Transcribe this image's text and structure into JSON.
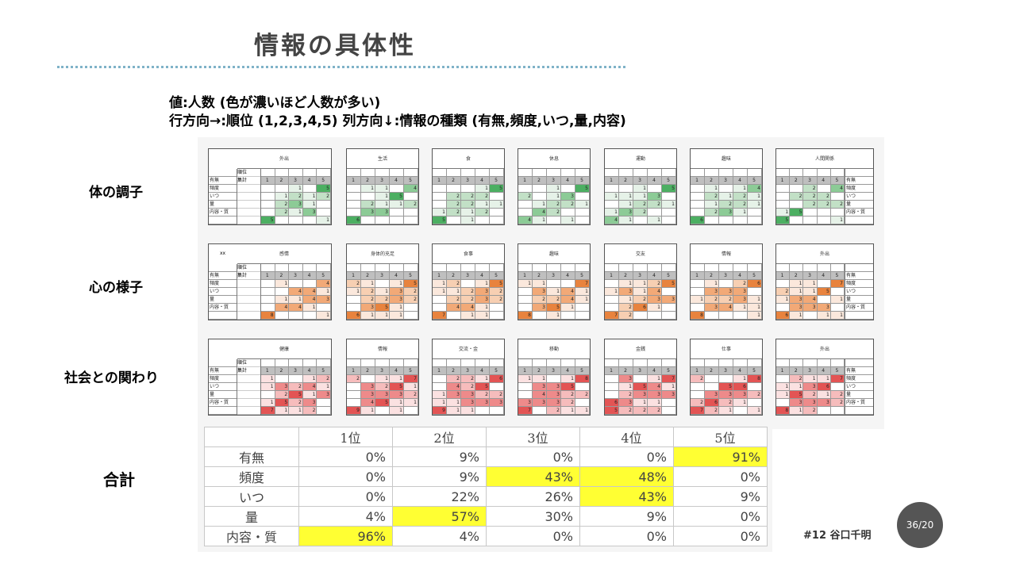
{
  "title": "情報の具体性",
  "subtitle_line1": "値:人数 (色が濃いほど人数が多い)",
  "subtitle_line2": "行方向→:順位 (1,2,3,4,5) 列方向↓:情報の種類 (有無,頻度,いつ,量,内容)",
  "row_labels": [
    "体の調子",
    "心の様子",
    "社会との関わり"
  ],
  "summary_label": "合計",
  "summary_table": {
    "headers": [
      "",
      "1位",
      "2位",
      "3位",
      "4位",
      "5位"
    ],
    "rows": [
      {
        "label": "有無",
        "values": [
          "0%",
          "9%",
          "0%",
          "0%",
          "91%"
        ],
        "highlight": [
          false,
          false,
          false,
          false,
          true
        ]
      },
      {
        "label": "頻度",
        "values": [
          "0%",
          "9%",
          "43%",
          "48%",
          "0%"
        ],
        "highlight": [
          false,
          false,
          true,
          true,
          false
        ]
      },
      {
        "label": "いつ",
        "values": [
          "0%",
          "22%",
          "26%",
          "43%",
          "9%"
        ],
        "highlight": [
          false,
          false,
          false,
          true,
          false
        ]
      },
      {
        "label": "量",
        "values": [
          "4%",
          "57%",
          "30%",
          "9%",
          "0%"
        ],
        "highlight": [
          false,
          true,
          false,
          false,
          false
        ]
      },
      {
        "label": "内容・質",
        "values": [
          "96%",
          "4%",
          "0%",
          "0%",
          "0%"
        ],
        "highlight": [
          true,
          false,
          false,
          false,
          false
        ]
      }
    ]
  },
  "mini_tables": {
    "rank_header": [
      "1",
      "2",
      "3",
      "4",
      "5"
    ],
    "row_names": [
      "有無",
      "頻度",
      "いつ",
      "量",
      "内容・質"
    ],
    "left_labels": {
      "rank": "順位",
      "sum": "集計",
      "xx": "xx"
    },
    "colors": {
      "green": [
        "#e6f2e8",
        "#c2e0c6",
        "#8ccb96",
        "#4caf62"
      ],
      "orange": [
        "#fbe8dc",
        "#f7cfb2",
        "#f2a977",
        "#e8833e"
      ],
      "red": [
        "#fbe1e1",
        "#f6bcbc",
        "#ee8a8a",
        "#e35454"
      ]
    },
    "groups": [
      {
        "color": "green",
        "titles": [
          "外出",
          "生活",
          "食",
          "休息",
          "運動",
          "趣味",
          "人間関係"
        ],
        "data": [
          [
            [
              0,
              0,
              1,
              0,
              5
            ],
            [
              0,
              1,
              2,
              1,
              2
            ],
            [
              0,
              2,
              3,
              1,
              0
            ],
            [
              0,
              2,
              1,
              3,
              0
            ],
            [
              5,
              0,
              0,
              0,
              1
            ]
          ],
          [
            [
              0,
              1,
              1,
              0,
              4
            ],
            [
              0,
              0,
              1,
              5,
              0
            ],
            [
              0,
              2,
              1,
              1,
              2
            ],
            [
              0,
              3,
              3,
              0,
              0
            ],
            [
              6,
              0,
              0,
              0,
              0
            ]
          ],
          [
            [
              0,
              0,
              0,
              1,
              5
            ],
            [
              0,
              2,
              2,
              2,
              0
            ],
            [
              0,
              2,
              2,
              1,
              1
            ],
            [
              1,
              2,
              1,
              2,
              0
            ],
            [
              5,
              0,
              1,
              0,
              0
            ]
          ],
          [
            [
              0,
              0,
              1,
              0,
              5
            ],
            [
              2,
              0,
              1,
              3,
              0
            ],
            [
              0,
              1,
              2,
              2,
              1
            ],
            [
              0,
              4,
              2,
              0,
              0
            ],
            [
              4,
              1,
              0,
              1,
              0
            ]
          ],
          [
            [
              0,
              0,
              1,
              0,
              5
            ],
            [
              1,
              1,
              1,
              3,
              0
            ],
            [
              0,
              1,
              2,
              2,
              1
            ],
            [
              1,
              3,
              2,
              0,
              0
            ],
            [
              4,
              1,
              0,
              1,
              0
            ]
          ],
          [
            [
              0,
              1,
              0,
              1,
              4
            ],
            [
              0,
              2,
              1,
              2,
              1
            ],
            [
              0,
              1,
              2,
              2,
              1
            ],
            [
              0,
              2,
              3,
              1,
              0
            ],
            [
              6,
              0,
              0,
              0,
              0
            ]
          ],
          [
            [
              0,
              0,
              2,
              0,
              4
            ],
            [
              0,
              2,
              2,
              2,
              0
            ],
            [
              0,
              0,
              2,
              2,
              2
            ],
            [
              1,
              5,
              0,
              0,
              0
            ],
            [
              5,
              0,
              0,
              0,
              1
            ]
          ]
        ]
      },
      {
        "color": "orange",
        "titles": [
          "感情",
          "身体的充足",
          "食事",
          "趣味",
          "交友",
          "情報",
          "外出"
        ],
        "data": [
          [
            [
              0,
              1,
              0,
              0,
              4
            ],
            [
              0,
              0,
              4,
              4,
              1
            ],
            [
              0,
              1,
              1,
              4,
              3
            ],
            [
              0,
              4,
              4,
              1,
              0
            ],
            [
              8,
              0,
              0,
              0,
              1
            ]
          ],
          [
            [
              2,
              1,
              0,
              1,
              5
            ],
            [
              1,
              2,
              1,
              3,
              2
            ],
            [
              0,
              2,
              2,
              3,
              2
            ],
            [
              0,
              3,
              5,
              1,
              0
            ],
            [
              6,
              1,
              1,
              1,
              0
            ]
          ],
          [
            [
              1,
              2,
              0,
              1,
              5
            ],
            [
              1,
              1,
              2,
              3,
              2
            ],
            [
              0,
              2,
              2,
              3,
              2
            ],
            [
              0,
              4,
              4,
              1,
              0
            ],
            [
              7,
              0,
              1,
              1,
              0
            ]
          ],
          [
            [
              1,
              1,
              0,
              0,
              7
            ],
            [
              0,
              3,
              1,
              4,
              1
            ],
            [
              0,
              2,
              2,
              4,
              1
            ],
            [
              0,
              3,
              5,
              1,
              0
            ],
            [
              8,
              0,
              1,
              0,
              0
            ]
          ],
          [
            [
              0,
              1,
              1,
              2,
              5
            ],
            [
              1,
              3,
              1,
              4,
              0
            ],
            [
              0,
              1,
              2,
              3,
              3
            ],
            [
              0,
              2,
              6,
              1,
              0
            ],
            [
              7,
              2,
              0,
              0,
              0
            ]
          ],
          [
            [
              0,
              1,
              0,
              2,
              6
            ],
            [
              0,
              3,
              3,
              3,
              0
            ],
            [
              1,
              2,
              2,
              3,
              1
            ],
            [
              0,
              3,
              4,
              1,
              1
            ],
            [
              8,
              0,
              0,
              0,
              1
            ]
          ],
          [
            [
              0,
              1,
              1,
              0,
              7
            ],
            [
              2,
              1,
              1,
              5,
              0
            ],
            [
              1,
              3,
              4,
              0,
              1
            ],
            [
              0,
              3,
              3,
              3,
              0
            ],
            [
              6,
              1,
              0,
              1,
              1
            ]
          ]
        ]
      },
      {
        "color": "red",
        "titles": [
          "健康",
          "情報",
          "交流・金",
          "移動",
          "金銭",
          "仕事",
          "外出"
        ],
        "data": [
          [
            [
              1,
              0,
              0,
              1,
              2
            ],
            [
              1,
              3,
              2,
              4,
              1
            ],
            [
              0,
              2,
              5,
              1,
              3
            ],
            [
              1,
              5,
              2,
              3,
              0
            ],
            [
              7,
              1,
              1,
              2,
              0
            ]
          ],
          [
            [
              2,
              0,
              1,
              1,
              7
            ],
            [
              0,
              3,
              2,
              5,
              1
            ],
            [
              0,
              3,
              3,
              3,
              2
            ],
            [
              0,
              4,
              5,
              1,
              1
            ],
            [
              9,
              1,
              0,
              1,
              0
            ]
          ],
          [
            [
              0,
              2,
              2,
              1,
              6
            ],
            [
              0,
              4,
              2,
              5,
              0
            ],
            [
              1,
              3,
              3,
              2,
              2
            ],
            [
              1,
              1,
              3,
              3,
              3
            ],
            [
              9,
              1,
              1,
              0,
              0
            ]
          ],
          [
            [
              1,
              1,
              0,
              1,
              8
            ],
            [
              0,
              3,
              3,
              5,
              0
            ],
            [
              0,
              4,
              3,
              2,
              2
            ],
            [
              3,
              3,
              3,
              2,
              0
            ],
            [
              7,
              0,
              2,
              1,
              1
            ]
          ],
          [
            [
              0,
              3,
              0,
              1,
              7
            ],
            [
              0,
              1,
              5,
              4,
              1
            ],
            [
              0,
              2,
              3,
              3,
              3
            ],
            [
              6,
              3,
              1,
              1,
              0
            ],
            [
              5,
              2,
              2,
              2,
              0
            ]
          ],
          [
            [
              2,
              0,
              0,
              1,
              8
            ],
            [
              0,
              0,
              5,
              6,
              0
            ],
            [
              0,
              3,
              3,
              3,
              2
            ],
            [
              2,
              6,
              2,
              1,
              0
            ],
            [
              7,
              2,
              1,
              0,
              1
            ]
          ],
          [
            [
              0,
              2,
              1,
              1,
              7
            ],
            [
              1,
              1,
              3,
              6,
              0
            ],
            [
              1,
              5,
              2,
              1,
              2
            ],
            [
              0,
              3,
              3,
              3,
              2
            ],
            [
              8,
              1,
              2,
              0,
              0
            ]
          ]
        ]
      }
    ]
  },
  "author": "#12 谷口千明",
  "page_number": "36/20"
}
